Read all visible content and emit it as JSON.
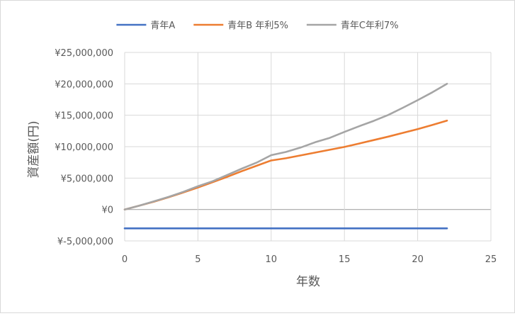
{
  "chart_data": {
    "type": "line",
    "title": "",
    "xlabel": "年数",
    "ylabel": "資産額(円)",
    "xlim": [
      0,
      25
    ],
    "ylim": [
      -5000000,
      25000000
    ],
    "xticks": [
      0,
      5,
      10,
      15,
      20,
      25
    ],
    "xtick_labels": [
      "0",
      "5",
      "10",
      "15",
      "20",
      "25"
    ],
    "yticks": [
      25000000,
      20000000,
      15000000,
      10000000,
      5000000,
      0,
      -5000000
    ],
    "ytick_labels": [
      "¥25,000,000",
      "¥20,000,000",
      "¥15,000,000",
      "¥10,000,000",
      "¥5,000,000",
      "¥0",
      "¥-5,000,000"
    ],
    "grid": true,
    "legend_position": "top",
    "series": [
      {
        "name": "青年A",
        "color": "#4472C4",
        "x": [
          0,
          22
        ],
        "y": [
          -3000000,
          -3000000
        ]
      },
      {
        "name": "青年B 年利5%",
        "color": "#ED7D31",
        "x": [
          0,
          1,
          2,
          3,
          4,
          5,
          6,
          7,
          8,
          9,
          10,
          11,
          12,
          13,
          14,
          15,
          16,
          17,
          18,
          19,
          20,
          21,
          22
        ],
        "y": [
          0,
          600000,
          1250000,
          1950000,
          2700000,
          3500000,
          4350000,
          5200000,
          6100000,
          6950000,
          7800000,
          8150000,
          8600000,
          9050000,
          9500000,
          9950000,
          10500000,
          11050000,
          11600000,
          12200000,
          12800000,
          13450000,
          14150000
        ]
      },
      {
        "name": "青年C年利7%",
        "color": "#A5A5A5",
        "x": [
          0,
          1,
          2,
          3,
          4,
          5,
          6,
          7,
          8,
          9,
          10,
          11,
          12,
          13,
          14,
          15,
          16,
          17,
          18,
          19,
          20,
          21,
          22
        ],
        "y": [
          0,
          600000,
          1300000,
          2000000,
          2800000,
          3700000,
          4500000,
          5500000,
          6500000,
          7450000,
          8650000,
          9150000,
          9850000,
          10700000,
          11400000,
          12350000,
          13250000,
          14100000,
          15050000,
          16200000,
          17400000,
          18650000,
          20000000
        ]
      }
    ]
  }
}
